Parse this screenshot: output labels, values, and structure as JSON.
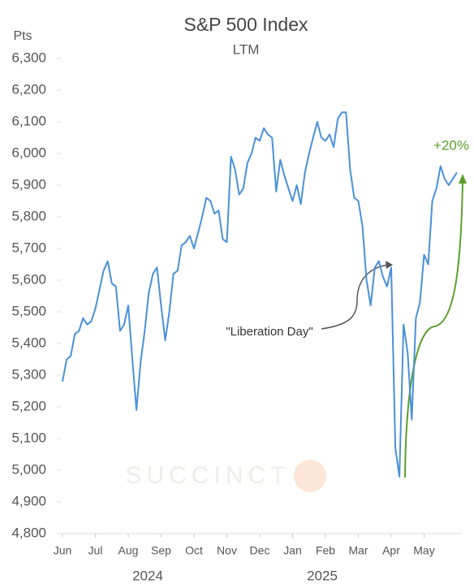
{
  "chart_data": {
    "type": "line",
    "title": "S&P 500 Index",
    "subtitle": "LTM",
    "y_label": "Pts",
    "categories": [
      "Jun",
      null,
      null,
      null,
      null,
      null,
      null,
      null,
      "Jul",
      null,
      null,
      null,
      null,
      null,
      null,
      null,
      "Aug",
      null,
      null,
      null,
      null,
      null,
      null,
      null,
      "Sep",
      null,
      null,
      null,
      null,
      null,
      null,
      null,
      "Oct",
      null,
      null,
      null,
      null,
      null,
      null,
      null,
      "Nov",
      null,
      null,
      null,
      null,
      null,
      null,
      null,
      "Dec",
      null,
      null,
      null,
      null,
      null,
      null,
      null,
      "Jan",
      null,
      null,
      null,
      null,
      null,
      null,
      null,
      "Feb",
      null,
      null,
      null,
      null,
      null,
      null,
      null,
      "Mar",
      null,
      null,
      null,
      null,
      null,
      null,
      null,
      "Apr",
      null,
      null,
      null,
      null,
      null,
      null,
      null,
      "May",
      null,
      null,
      null,
      null,
      null,
      null,
      null,
      null
    ],
    "values": [
      5280,
      5350,
      5360,
      5430,
      5440,
      5480,
      5460,
      5470,
      5510,
      5570,
      5630,
      5660,
      5590,
      5580,
      5440,
      5460,
      5520,
      5350,
      5190,
      5340,
      5440,
      5560,
      5620,
      5640,
      5520,
      5410,
      5500,
      5620,
      5630,
      5710,
      5720,
      5740,
      5700,
      5750,
      5800,
      5860,
      5850,
      5810,
      5820,
      5730,
      5720,
      5990,
      5950,
      5870,
      5890,
      5970,
      6000,
      6050,
      6040,
      6080,
      6060,
      6050,
      5880,
      5980,
      5930,
      5890,
      5850,
      5900,
      5840,
      5940,
      6000,
      6050,
      6100,
      6050,
      6040,
      6060,
      6020,
      6110,
      6130,
      6130,
      5950,
      5860,
      5850,
      5770,
      5600,
      5520,
      5640,
      5660,
      5610,
      5580,
      5640,
      5070,
      4980,
      5460,
      5370,
      5160,
      5480,
      5530,
      5680,
      5650,
      5850,
      5890,
      5960,
      5920,
      5900,
      5920,
      5940
    ],
    "color": "#4a90d9",
    "ylim": [
      4800,
      6300
    ],
    "yticks": [
      {
        "value": 4800,
        "label": "4,800"
      },
      {
        "value": 4900,
        "label": "4,900"
      },
      {
        "value": 5000,
        "label": "5,000"
      },
      {
        "value": 5100,
        "label": "5,100"
      },
      {
        "value": 5200,
        "label": "5,200"
      },
      {
        "value": 5300,
        "label": "5,300"
      },
      {
        "value": 5400,
        "label": "5,400"
      },
      {
        "value": 5500,
        "label": "5,500"
      },
      {
        "value": 5600,
        "label": "5,600"
      },
      {
        "value": 5700,
        "label": "5,700"
      },
      {
        "value": 5800,
        "label": "5,800"
      },
      {
        "value": 5900,
        "label": "5,900"
      },
      {
        "value": 6000,
        "label": "6,000"
      },
      {
        "value": 6100,
        "label": "6,100"
      },
      {
        "value": 6200,
        "label": "6,200"
      },
      {
        "value": 6300,
        "label": "6,300"
      }
    ],
    "year_labels": [
      "2024",
      "2025"
    ],
    "annotations": [
      "\"Liberation Day\"",
      "+20%"
    ],
    "watermark": "SUCCINCT"
  }
}
